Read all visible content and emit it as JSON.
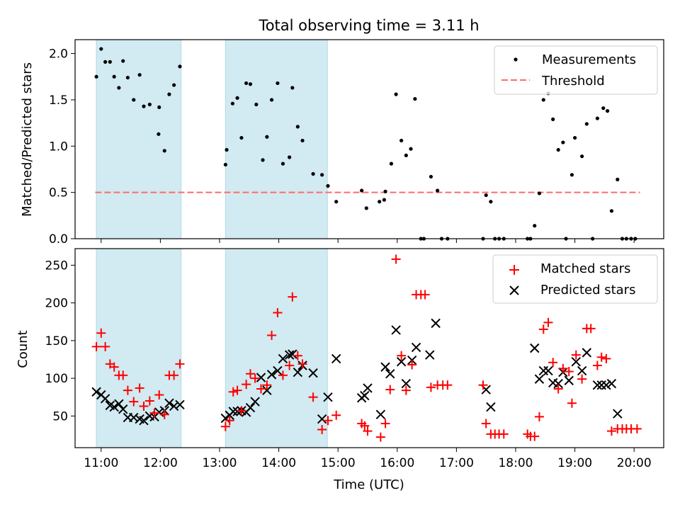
{
  "title": "Total observing time = 3.11 h",
  "chart_data": [
    {
      "type": "scatter",
      "panel": "top",
      "ylabel": "Matched/Predicted stars",
      "ylim": [
        0,
        2.15
      ],
      "yticks": [
        0.0,
        0.5,
        1.0,
        1.5,
        2.0
      ],
      "ytick_labels": [
        "0.0",
        "0.5",
        "1.0",
        "1.5",
        "2.0"
      ],
      "xlim": [
        10.56,
        20.5
      ],
      "grid": false,
      "legend_position": "upper right",
      "legend": [
        {
          "label": "Measurements",
          "marker": "dot",
          "color": "#000000"
        },
        {
          "label": "Threshold",
          "marker": "dashed-line",
          "color": "#ff6b6b"
        }
      ],
      "threshold": {
        "y": 0.5,
        "x_start": 10.9,
        "x_end": 20.1
      },
      "series": [
        {
          "name": "Measurements",
          "points": [
            [
              10.92,
              1.75
            ],
            [
              11.0,
              2.05
            ],
            [
              11.07,
              1.91
            ],
            [
              11.15,
              1.91
            ],
            [
              11.22,
              1.75
            ],
            [
              11.3,
              1.63
            ],
            [
              11.37,
              1.92
            ],
            [
              11.45,
              1.74
            ],
            [
              11.55,
              1.5
            ],
            [
              11.65,
              1.77
            ],
            [
              11.72,
              1.43
            ],
            [
              11.82,
              1.45
            ],
            [
              11.98,
              1.42
            ],
            [
              11.97,
              1.13
            ],
            [
              12.07,
              0.95
            ],
            [
              12.15,
              1.56
            ],
            [
              12.23,
              1.66
            ],
            [
              12.33,
              1.86
            ],
            [
              13.1,
              0.8
            ],
            [
              13.12,
              0.96
            ],
            [
              13.22,
              1.46
            ],
            [
              13.3,
              1.52
            ],
            [
              13.37,
              1.09
            ],
            [
              13.45,
              1.68
            ],
            [
              13.52,
              1.67
            ],
            [
              13.62,
              1.45
            ],
            [
              13.73,
              0.85
            ],
            [
              13.8,
              1.1
            ],
            [
              13.88,
              1.5
            ],
            [
              13.98,
              1.68
            ],
            [
              14.07,
              0.81
            ],
            [
              14.18,
              0.88
            ],
            [
              14.23,
              1.63
            ],
            [
              14.32,
              1.21
            ],
            [
              14.4,
              1.06
            ],
            [
              14.58,
              0.7
            ],
            [
              14.73,
              0.69
            ],
            [
              14.83,
              0.57
            ],
            [
              14.97,
              0.4
            ],
            [
              15.4,
              0.52
            ],
            [
              15.48,
              0.33
            ],
            [
              15.7,
              0.4
            ],
            [
              15.78,
              0.42
            ],
            [
              15.8,
              0.51
            ],
            [
              15.9,
              0.81
            ],
            [
              15.98,
              1.56
            ],
            [
              16.07,
              1.06
            ],
            [
              16.15,
              0.9
            ],
            [
              16.23,
              0.97
            ],
            [
              16.3,
              1.51
            ],
            [
              16.4,
              0.0
            ],
            [
              16.45,
              0.0
            ],
            [
              16.57,
              0.67
            ],
            [
              16.68,
              0.52
            ],
            [
              16.75,
              0.0
            ],
            [
              16.85,
              0.0
            ],
            [
              17.45,
              0.0
            ],
            [
              17.5,
              0.47
            ],
            [
              17.58,
              0.4
            ],
            [
              17.65,
              0.0
            ],
            [
              17.72,
              0.0
            ],
            [
              17.8,
              0.0
            ],
            [
              18.2,
              0.0
            ],
            [
              18.25,
              0.0
            ],
            [
              18.32,
              0.14
            ],
            [
              18.4,
              0.49
            ],
            [
              18.47,
              1.5
            ],
            [
              18.55,
              1.57
            ],
            [
              18.63,
              1.29
            ],
            [
              18.72,
              0.96
            ],
            [
              18.8,
              1.04
            ],
            [
              18.85,
              0.0
            ],
            [
              18.95,
              0.69
            ],
            [
              19.0,
              1.09
            ],
            [
              19.12,
              0.89
            ],
            [
              19.2,
              1.24
            ],
            [
              19.3,
              0.0
            ],
            [
              19.38,
              1.3
            ],
            [
              19.48,
              1.41
            ],
            [
              19.55,
              1.38
            ],
            [
              19.62,
              0.3
            ],
            [
              19.72,
              0.64
            ],
            [
              19.8,
              0.0
            ],
            [
              19.87,
              0.0
            ],
            [
              19.95,
              0.0
            ],
            [
              20.02,
              0.0
            ]
          ]
        }
      ]
    },
    {
      "type": "scatter",
      "panel": "bottom",
      "xlabel": "Time (UTC)",
      "ylabel": "Count",
      "ylim": [
        8,
        272
      ],
      "yticks": [
        50,
        100,
        150,
        200,
        250
      ],
      "ytick_labels": [
        "50",
        "100",
        "150",
        "200",
        "250"
      ],
      "xlim": [
        10.56,
        20.5
      ],
      "xticks": [
        11,
        12,
        13,
        14,
        15,
        16,
        17,
        18,
        19,
        20
      ],
      "xtick_labels": [
        "11:00",
        "12:00",
        "13:00",
        "14:00",
        "15:00",
        "16:00",
        "17:00",
        "18:00",
        "19:00",
        "20:00"
      ],
      "grid": false,
      "legend_position": "upper right",
      "legend": [
        {
          "label": "Matched stars",
          "marker": "plus",
          "color": "#ff0000"
        },
        {
          "label": "Predicted stars",
          "marker": "x",
          "color": "#000000"
        }
      ],
      "series": [
        {
          "name": "Matched stars",
          "points": [
            [
              10.92,
              142
            ],
            [
              11.0,
              160
            ],
            [
              11.07,
              142
            ],
            [
              11.15,
              119
            ],
            [
              11.22,
              115
            ],
            [
              11.3,
              104
            ],
            [
              11.37,
              104
            ],
            [
              11.45,
              84
            ],
            [
              11.55,
              69
            ],
            [
              11.65,
              87
            ],
            [
              11.72,
              63
            ],
            [
              11.82,
              70
            ],
            [
              11.9,
              54
            ],
            [
              11.98,
              78
            ],
            [
              12.07,
              52
            ],
            [
              12.15,
              104
            ],
            [
              12.23,
              104
            ],
            [
              12.33,
              119
            ],
            [
              13.1,
              36
            ],
            [
              13.17,
              44
            ],
            [
              13.23,
              82
            ],
            [
              13.3,
              84
            ],
            [
              13.37,
              57
            ],
            [
              13.45,
              92
            ],
            [
              13.52,
              106
            ],
            [
              13.6,
              100
            ],
            [
              13.7,
              86
            ],
            [
              13.8,
              91
            ],
            [
              13.88,
              157
            ],
            [
              13.98,
              187
            ],
            [
              14.07,
              104
            ],
            [
              14.18,
              117
            ],
            [
              14.23,
              208
            ],
            [
              14.32,
              130
            ],
            [
              14.4,
              119
            ],
            [
              14.58,
              75
            ],
            [
              14.73,
              32
            ],
            [
              14.83,
              44
            ],
            [
              14.97,
              51
            ],
            [
              15.4,
              40
            ],
            [
              15.45,
              37
            ],
            [
              15.5,
              30
            ],
            [
              15.72,
              22
            ],
            [
              15.8,
              40
            ],
            [
              15.88,
              85
            ],
            [
              15.98,
              258
            ],
            [
              16.07,
              130
            ],
            [
              16.15,
              84
            ],
            [
              16.25,
              118
            ],
            [
              16.32,
              211
            ],
            [
              16.4,
              211
            ],
            [
              16.47,
              211
            ],
            [
              16.57,
              88
            ],
            [
              16.68,
              91
            ],
            [
              16.77,
              91
            ],
            [
              16.85,
              91
            ],
            [
              17.45,
              91
            ],
            [
              17.5,
              40
            ],
            [
              17.58,
              26
            ],
            [
              17.65,
              26
            ],
            [
              17.72,
              26
            ],
            [
              17.8,
              26
            ],
            [
              18.2,
              26
            ],
            [
              18.25,
              23
            ],
            [
              18.32,
              23
            ],
            [
              18.4,
              49
            ],
            [
              18.47,
              165
            ],
            [
              18.55,
              174
            ],
            [
              18.63,
              121
            ],
            [
              18.72,
              86
            ],
            [
              18.8,
              113
            ],
            [
              18.9,
              109
            ],
            [
              18.95,
              67
            ],
            [
              19.02,
              131
            ],
            [
              19.12,
              99
            ],
            [
              19.2,
              166
            ],
            [
              19.27,
              166
            ],
            [
              19.38,
              117
            ],
            [
              19.45,
              128
            ],
            [
              19.53,
              126
            ],
            [
              19.62,
              30
            ],
            [
              19.72,
              33
            ],
            [
              19.8,
              33
            ],
            [
              19.87,
              33
            ],
            [
              19.95,
              33
            ],
            [
              20.05,
              33
            ]
          ]
        },
        {
          "name": "Predicted stars",
          "points": [
            [
              10.92,
              82
            ],
            [
              11.0,
              78
            ],
            [
              11.07,
              73
            ],
            [
              11.15,
              64
            ],
            [
              11.22,
              62
            ],
            [
              11.3,
              66
            ],
            [
              11.37,
              59
            ],
            [
              11.45,
              48
            ],
            [
              11.55,
              48
            ],
            [
              11.65,
              46
            ],
            [
              11.72,
              44
            ],
            [
              11.82,
              50
            ],
            [
              11.9,
              49
            ],
            [
              11.98,
              55
            ],
            [
              12.07,
              57
            ],
            [
              12.15,
              67
            ],
            [
              12.23,
              63
            ],
            [
              12.33,
              65
            ],
            [
              13.1,
              47
            ],
            [
              13.17,
              51
            ],
            [
              13.23,
              56
            ],
            [
              13.3,
              56
            ],
            [
              13.37,
              57
            ],
            [
              13.45,
              55
            ],
            [
              13.52,
              61
            ],
            [
              13.6,
              69
            ],
            [
              13.7,
              101
            ],
            [
              13.8,
              84
            ],
            [
              13.88,
              105
            ],
            [
              13.98,
              110
            ],
            [
              14.07,
              126
            ],
            [
              14.18,
              131
            ],
            [
              14.23,
              132
            ],
            [
              14.32,
              108
            ],
            [
              14.4,
              117
            ],
            [
              14.58,
              107
            ],
            [
              14.73,
              46
            ],
            [
              14.83,
              75
            ],
            [
              14.97,
              126
            ],
            [
              15.4,
              74
            ],
            [
              15.45,
              77
            ],
            [
              15.5,
              87
            ],
            [
              15.72,
              52
            ],
            [
              15.8,
              115
            ],
            [
              15.88,
              106
            ],
            [
              15.98,
              164
            ],
            [
              16.07,
              122
            ],
            [
              16.15,
              93
            ],
            [
              16.25,
              124
            ],
            [
              16.32,
              141
            ],
            [
              16.55,
              131
            ],
            [
              16.65,
              173
            ],
            [
              17.5,
              85
            ],
            [
              17.58,
              62
            ],
            [
              18.32,
              140
            ],
            [
              18.4,
              99
            ],
            [
              18.47,
              110
            ],
            [
              18.55,
              110
            ],
            [
              18.63,
              94
            ],
            [
              18.72,
              93
            ],
            [
              18.8,
              108
            ],
            [
              18.9,
              97
            ],
            [
              19.02,
              122
            ],
            [
              19.12,
              110
            ],
            [
              19.2,
              134
            ],
            [
              19.38,
              91
            ],
            [
              19.45,
              91
            ],
            [
              19.53,
              91
            ],
            [
              19.62,
              93
            ],
            [
              19.72,
              53
            ]
          ]
        }
      ]
    }
  ],
  "shaded_regions": [
    [
      10.92,
      12.35
    ],
    [
      13.1,
      14.82
    ]
  ],
  "colors": {
    "shade": "#add8e6",
    "matched": "#ff0000",
    "measurement": "#000000",
    "threshold": "#ff6b6b"
  }
}
